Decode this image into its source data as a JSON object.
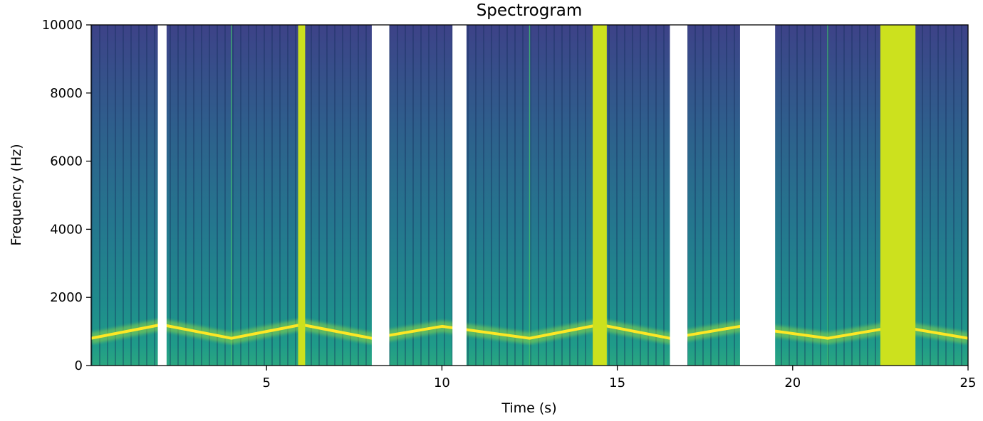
{
  "chart_data": {
    "type": "heatmap",
    "title": "Spectrogram",
    "xlabel": "Time (s)",
    "ylabel": "Frequency (Hz)",
    "xlim": [
      0,
      25
    ],
    "ylim": [
      0,
      10000
    ],
    "x_ticks": [
      5,
      10,
      15,
      20,
      25
    ],
    "x_tick_labels": [
      "5",
      "10",
      "15",
      "20",
      "25"
    ],
    "y_ticks": [
      0,
      2000,
      4000,
      6000,
      8000,
      10000
    ],
    "y_tick_labels": [
      "0",
      "2000",
      "4000",
      "6000",
      "8000",
      "10000"
    ],
    "colormap": "viridis",
    "grid": false,
    "silent_gaps_s": [
      [
        1.9,
        2.15
      ],
      [
        8.0,
        8.5
      ],
      [
        10.3,
        10.7
      ],
      [
        16.5,
        17.0
      ],
      [
        18.5,
        19.5
      ]
    ],
    "noise_bursts_s": [
      [
        5.9,
        6.1
      ],
      [
        14.3,
        14.7
      ],
      [
        22.5,
        23.5
      ]
    ],
    "transients_s": [
      4.0,
      12.5,
      21.0
    ],
    "tone_track": {
      "description_hz_vs_s": "tonal component rising and falling between about 800 and 1200 Hz",
      "points": [
        [
          0,
          800
        ],
        [
          2,
          1200
        ],
        [
          4,
          800
        ],
        [
          6,
          1200
        ],
        [
          8,
          800
        ],
        [
          10,
          1150
        ],
        [
          12.5,
          800
        ],
        [
          14.5,
          1200
        ],
        [
          16.5,
          800
        ],
        [
          18.5,
          1150
        ],
        [
          21,
          800
        ],
        [
          23,
          1150
        ],
        [
          25,
          800
        ]
      ]
    }
  }
}
